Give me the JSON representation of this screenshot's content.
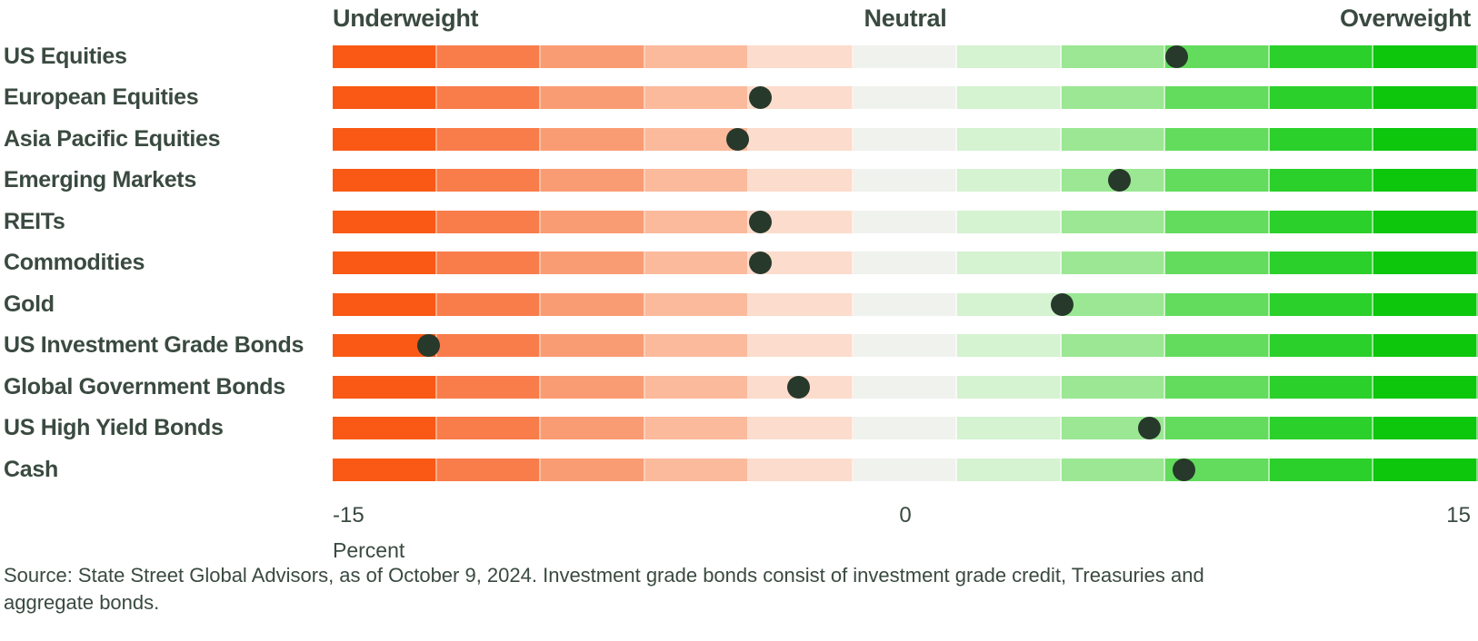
{
  "header": {
    "underweight": "Underweight",
    "neutral": "Neutral",
    "overweight": "Overweight"
  },
  "axis": {
    "min_label": "-15",
    "zero_label": "0",
    "max_label": "15",
    "unit_label": "Percent"
  },
  "source_note": "Source: State Street Global Advisors, as of October 9, 2024. Investment grade bonds consist of investment grade credit, Treasuries and\naggregate bonds.",
  "colors": {
    "text": "#3A4A40",
    "dot": "#27392B",
    "background": "#FFFFFF"
  },
  "chart_data": {
    "type": "scatter",
    "subtype": "diverging-dot-strip",
    "title": "",
    "xlabel": "Percent",
    "xlim": [
      -15,
      15
    ],
    "zone_labels": [
      "Underweight",
      "Neutral",
      "Overweight"
    ],
    "categories": [
      "US Equities",
      "European Equities",
      "Asia Pacific Equities",
      "Emerging Markets",
      "REITs",
      "Commodities",
      "Gold",
      "US Investment Grade Bonds",
      "Global Government Bonds",
      "US High Yield Bonds",
      "Cash"
    ],
    "values": [
      7.1,
      -3.8,
      -4.4,
      5.6,
      -3.8,
      -3.8,
      4.1,
      -12.5,
      -2.8,
      6.4,
      7.3
    ],
    "segment_colors": [
      "#F95915",
      "#F97C4B",
      "#FA9C73",
      "#FBBA9C",
      "#FCDCCD",
      "#F0F2EE",
      "#D5F2D1",
      "#9BE793",
      "#63DC5D",
      "#2BD02A",
      "#0CC70C"
    ],
    "grid": false,
    "legend": "none"
  }
}
